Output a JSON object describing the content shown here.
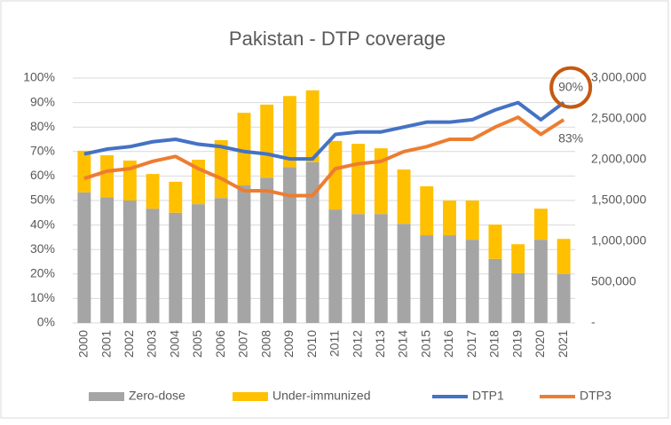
{
  "chart_data": {
    "type": "bar-line",
    "title": "Pakistan - DTP coverage",
    "categories": [
      "2000",
      "2001",
      "2002",
      "2003",
      "2004",
      "2005",
      "2006",
      "2007",
      "2008",
      "2009",
      "2010",
      "2011",
      "2012",
      "2013",
      "2014",
      "2015",
      "2016",
      "2017",
      "2018",
      "2019",
      "2020",
      "2021"
    ],
    "series": [
      {
        "name": "Zero-dose",
        "type": "bar",
        "axis": "y2",
        "color": "#a5a5a5",
        "values": [
          1600000,
          1540000,
          1500000,
          1400000,
          1350000,
          1455000,
          1530000,
          1685000,
          1780000,
          1910000,
          1970000,
          1390000,
          1335000,
          1335000,
          1215000,
          1075000,
          1075000,
          1020000,
          785000,
          610000,
          1020000,
          600000
        ]
      },
      {
        "name": "Under-immunized",
        "type": "bar",
        "axis": "y2",
        "color": "#ffc000",
        "values": [
          510000,
          515000,
          490000,
          425000,
          380000,
          545000,
          710000,
          890000,
          895000,
          870000,
          880000,
          840000,
          860000,
          805000,
          665000,
          600000,
          425000,
          480000,
          420000,
          355000,
          380000,
          430000
        ]
      },
      {
        "name": "DTP1",
        "type": "line",
        "axis": "y",
        "color": "#4472c4",
        "values": [
          69,
          71,
          72,
          74,
          75,
          73,
          72,
          70,
          69,
          67,
          67,
          77,
          78,
          78,
          80,
          82,
          82,
          83,
          87,
          90,
          83,
          90
        ],
        "value_labels": [
          null,
          null,
          null,
          null,
          null,
          null,
          null,
          null,
          null,
          null,
          null,
          null,
          null,
          null,
          null,
          null,
          null,
          null,
          null,
          null,
          null,
          "90%"
        ]
      },
      {
        "name": "DTP3",
        "type": "line",
        "axis": "y",
        "color": "#ed7d31",
        "values": [
          59,
          62,
          63,
          66,
          68,
          63,
          59,
          54,
          54,
          52,
          52,
          63,
          65,
          66,
          70,
          72,
          75,
          75,
          80,
          84,
          77,
          83
        ],
        "value_labels": [
          null,
          null,
          null,
          null,
          null,
          null,
          null,
          null,
          null,
          null,
          null,
          null,
          null,
          null,
          null,
          null,
          null,
          null,
          null,
          null,
          null,
          "83%"
        ]
      }
    ],
    "ylim": [
      0,
      100
    ],
    "yticks": [
      {
        "value": 0,
        "label": "0%"
      },
      {
        "value": 10,
        "label": "10%"
      },
      {
        "value": 20,
        "label": "20%"
      },
      {
        "value": 30,
        "label": "30%"
      },
      {
        "value": 40,
        "label": "40%"
      },
      {
        "value": 50,
        "label": "50%"
      },
      {
        "value": 60,
        "label": "60%"
      },
      {
        "value": 70,
        "label": "70%"
      },
      {
        "value": 80,
        "label": "80%"
      },
      {
        "value": 90,
        "label": "90%"
      },
      {
        "value": 100,
        "label": "100%"
      }
    ],
    "y2lim": [
      0,
      3000000
    ],
    "y2ticks": [
      {
        "value": 0,
        "label": "-"
      },
      {
        "value": 500000,
        "label": "500,000"
      },
      {
        "value": 1000000,
        "label": "1,000,000"
      },
      {
        "value": 1500000,
        "label": "1,500,000"
      },
      {
        "value": 2000000,
        "label": "2,000,000"
      },
      {
        "value": 2500000,
        "label": "2,500,000"
      },
      {
        "value": 3000000,
        "label": "3,000,000"
      }
    ],
    "grid": true,
    "legend": "bottom"
  }
}
